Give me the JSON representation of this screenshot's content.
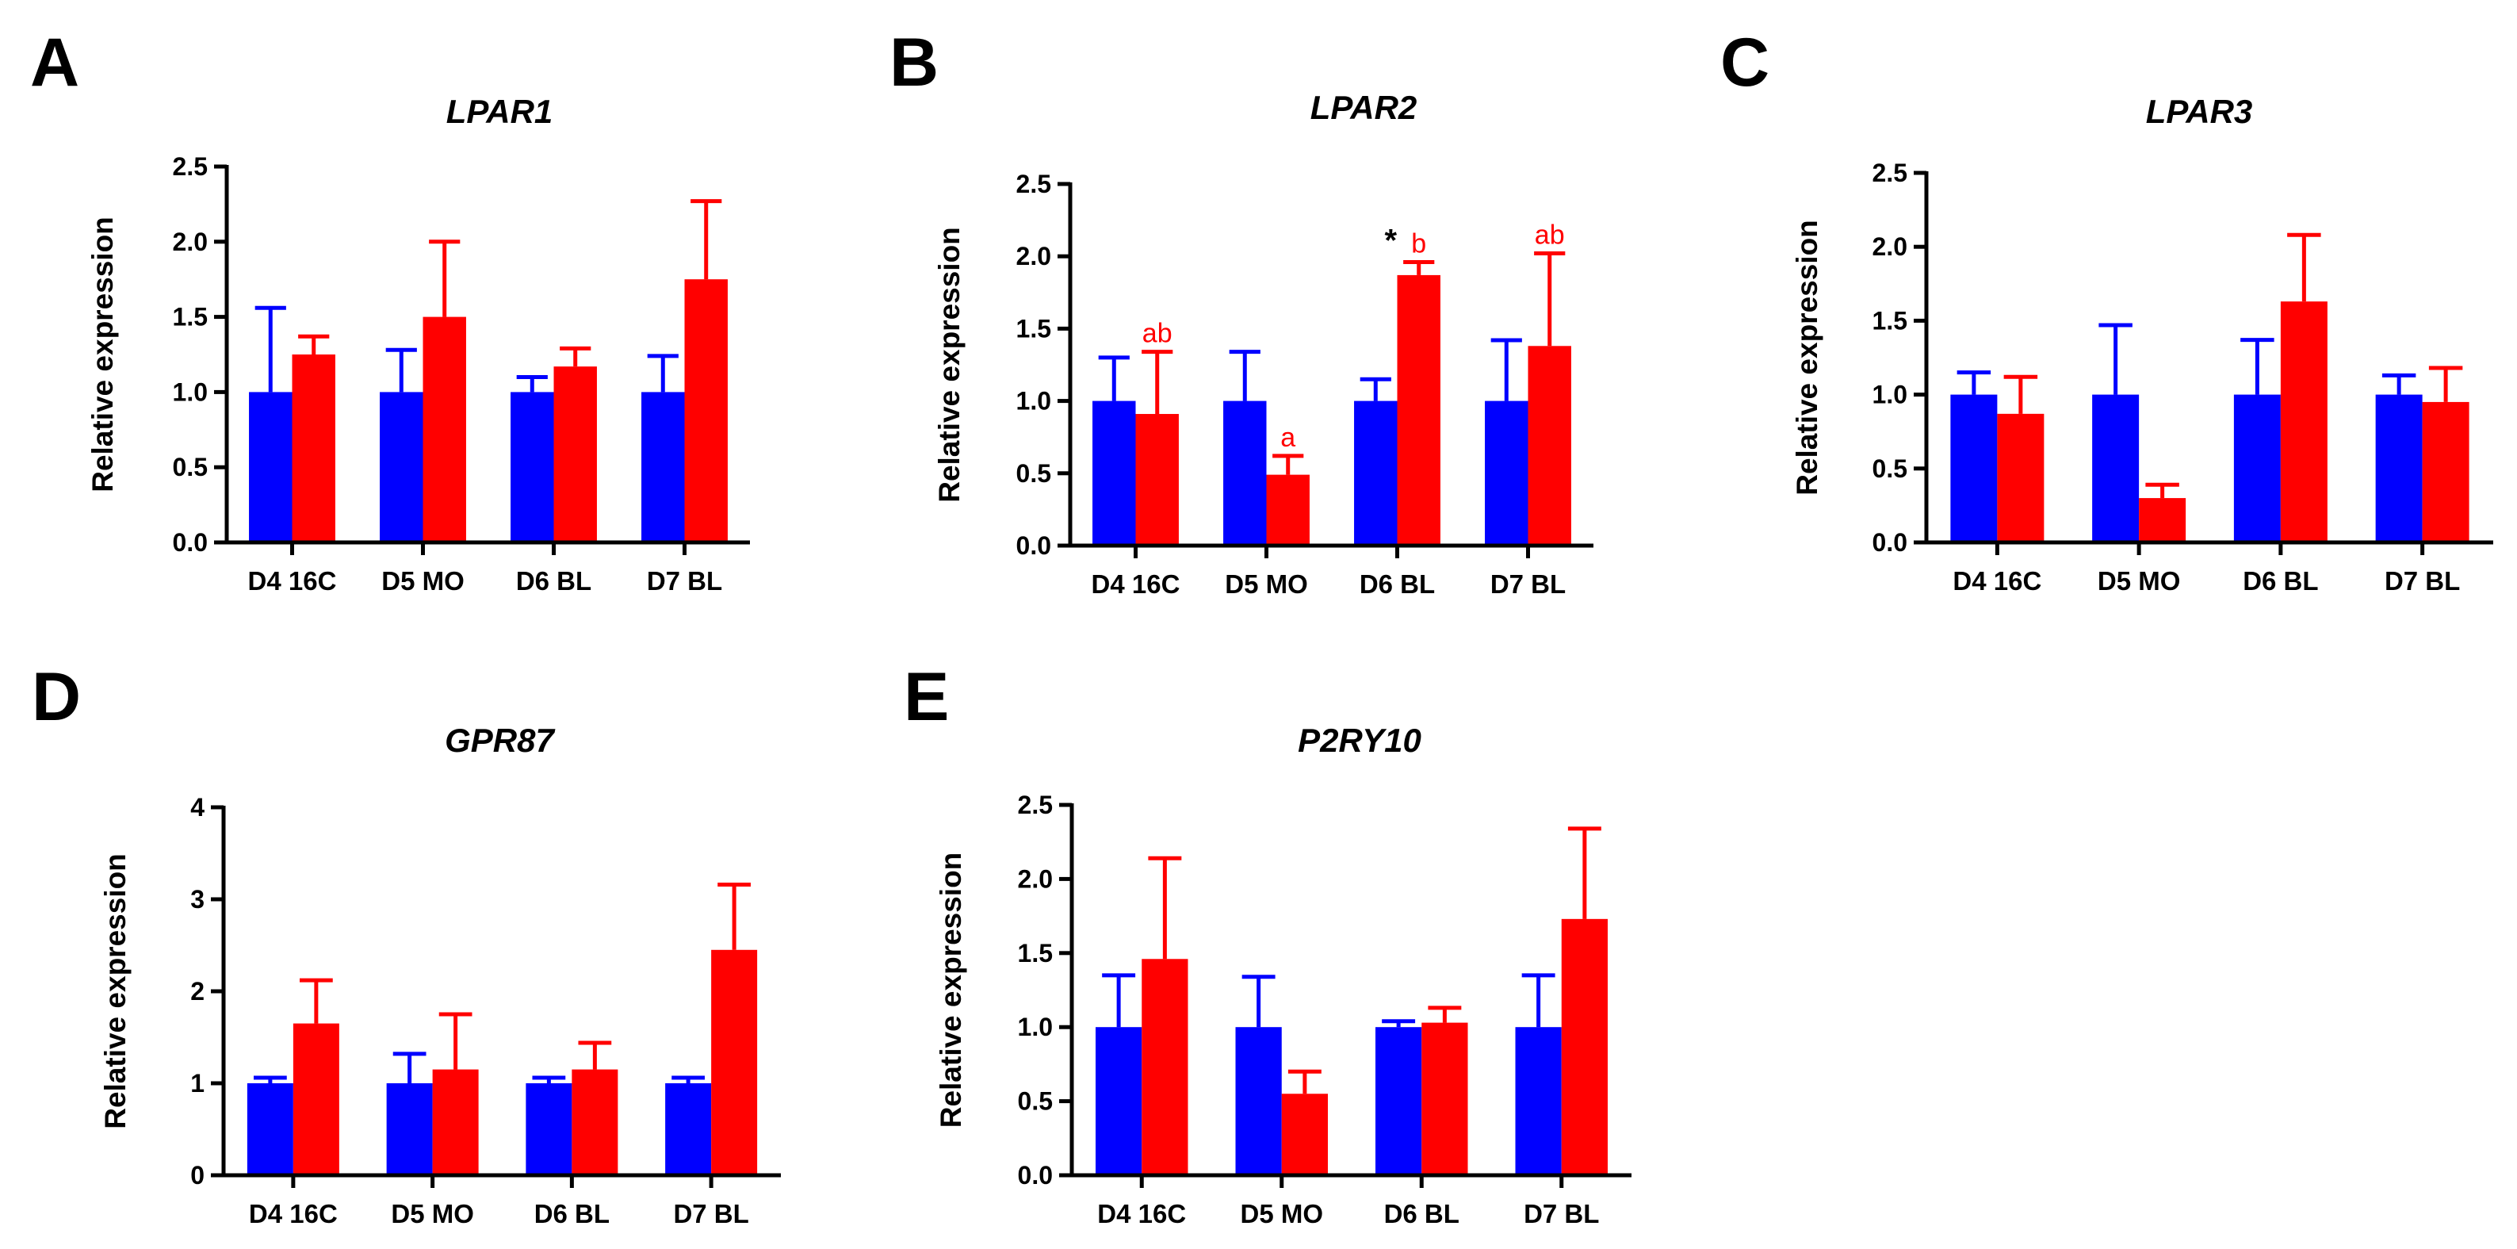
{
  "colors": {
    "control": "#0000ff",
    "treatment": "#ff0000",
    "annotation": "#ff0000",
    "axis": "#000000"
  },
  "chart_data": [
    {
      "panel": "A",
      "type": "bar",
      "title": "LPAR1",
      "xlabel": "",
      "ylabel": "Relative expression",
      "ylim": [
        0,
        2.5
      ],
      "yticks": [
        "0.0",
        "0.5",
        "1.0",
        "1.5",
        "2.0",
        "2.5"
      ],
      "categories": [
        "D4 16C",
        "D5 MO",
        "D6 BL",
        "D7 BL"
      ],
      "series": [
        {
          "color": "#0000ff",
          "values": [
            1.0,
            1.0,
            1.0,
            1.0
          ],
          "errors": [
            0.56,
            0.28,
            0.1,
            0.24
          ]
        },
        {
          "color": "#ff0000",
          "values": [
            1.25,
            1.5,
            1.17,
            1.75
          ],
          "errors": [
            0.12,
            0.5,
            0.12,
            0.52
          ]
        }
      ],
      "annotations": []
    },
    {
      "panel": "B",
      "type": "bar",
      "title": "LPAR2",
      "xlabel": "",
      "ylabel": "Relative expression",
      "ylim": [
        0,
        2.5
      ],
      "yticks": [
        "0.0",
        "0.5",
        "1.0",
        "1.5",
        "2.0",
        "2.5"
      ],
      "categories": [
        "D4 16C",
        "D5 MO",
        "D6 BL",
        "D7 BL"
      ],
      "series": [
        {
          "color": "#0000ff",
          "values": [
            1.0,
            1.0,
            1.0,
            1.0
          ],
          "errors": [
            0.3,
            0.34,
            0.15,
            0.42
          ]
        },
        {
          "color": "#ff0000",
          "values": [
            0.91,
            0.49,
            1.87,
            1.38
          ],
          "errors": [
            0.43,
            0.13,
            0.09,
            0.64
          ]
        }
      ],
      "annotations": [
        {
          "category": 0,
          "series": 1,
          "text": "ab"
        },
        {
          "category": 1,
          "series": 1,
          "text": "a"
        },
        {
          "category": 2,
          "series": 1,
          "text": "b"
        },
        {
          "category": 3,
          "series": 1,
          "text": "ab"
        },
        {
          "category": 2,
          "series": 0,
          "text": "*",
          "style": "star"
        }
      ]
    },
    {
      "panel": "C",
      "type": "bar",
      "title": "LPAR3",
      "xlabel": "",
      "ylabel": "Relative expression",
      "ylim": [
        0,
        2.5
      ],
      "yticks": [
        "0.0",
        "0.5",
        "1.0",
        "1.5",
        "2.0",
        "2.5"
      ],
      "categories": [
        "D4 16C",
        "D5 MO",
        "D6 BL",
        "D7 BL"
      ],
      "series": [
        {
          "color": "#0000ff",
          "values": [
            1.0,
            1.0,
            1.0,
            1.0
          ],
          "errors": [
            0.15,
            0.47,
            0.37,
            0.13
          ]
        },
        {
          "color": "#ff0000",
          "values": [
            0.87,
            0.3,
            1.63,
            0.95
          ],
          "errors": [
            0.25,
            0.09,
            0.45,
            0.23
          ]
        }
      ],
      "annotations": []
    },
    {
      "panel": "D",
      "type": "bar",
      "title": "GPR87",
      "xlabel": "",
      "ylabel": "Relative expression",
      "ylim": [
        0,
        4
      ],
      "yticks": [
        "0",
        "1",
        "2",
        "3",
        "4"
      ],
      "categories": [
        "D4 16C",
        "D5 MO",
        "D6 BL",
        "D7 BL"
      ],
      "series": [
        {
          "color": "#0000ff",
          "values": [
            1.0,
            1.0,
            1.0,
            1.0
          ],
          "errors": [
            0.06,
            0.32,
            0.06,
            0.06
          ]
        },
        {
          "color": "#ff0000",
          "values": [
            1.65,
            1.15,
            1.15,
            2.45
          ],
          "errors": [
            0.47,
            0.6,
            0.29,
            0.71
          ]
        }
      ],
      "annotations": []
    },
    {
      "panel": "E",
      "type": "bar",
      "title": "P2RY10",
      "xlabel": "",
      "ylabel": "Relative expression",
      "ylim": [
        0,
        2.5
      ],
      "yticks": [
        "0.0",
        "0.5",
        "1.0",
        "1.5",
        "2.0",
        "2.5"
      ],
      "categories": [
        "D4 16C",
        "D5 MO",
        "D6 BL",
        "D7 BL"
      ],
      "series": [
        {
          "color": "#0000ff",
          "values": [
            1.0,
            1.0,
            1.0,
            1.0
          ],
          "errors": [
            0.35,
            0.34,
            0.04,
            0.35
          ]
        },
        {
          "color": "#ff0000",
          "values": [
            1.46,
            0.55,
            1.03,
            1.73
          ],
          "errors": [
            0.68,
            0.15,
            0.1,
            0.61
          ]
        }
      ],
      "annotations": []
    }
  ]
}
